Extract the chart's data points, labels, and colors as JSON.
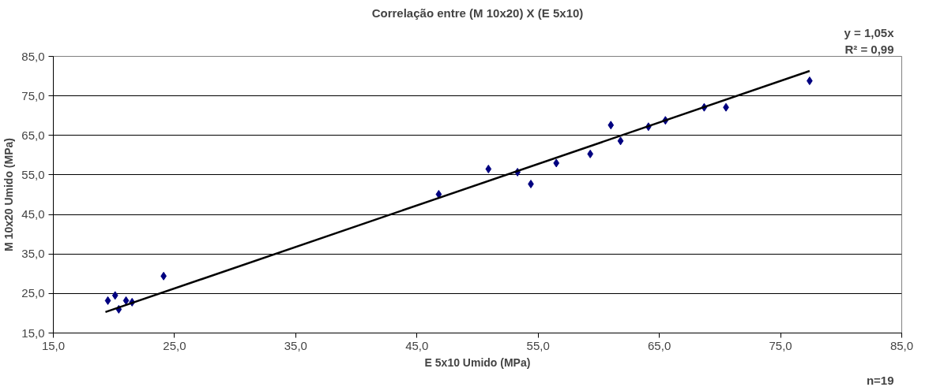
{
  "chart_data": {
    "type": "scatter",
    "title": "Correlação entre (M 10x20) X (E 5x10)",
    "xlabel": "E 5x10 Umido (MPa)",
    "ylabel": "M 10x20 Umido (MPa)",
    "annotations": [
      "y = 1,05x",
      "R² = 0,99",
      "n=19"
    ],
    "series": [
      {
        "color": "#000080",
        "marker": "diamond",
        "x": [
          19.5,
          20.1,
          20.4,
          21.0,
          21.5,
          24.1,
          46.8,
          50.9,
          53.3,
          54.4,
          56.5,
          59.3,
          61.0,
          61.8,
          64.1,
          65.5,
          68.7,
          70.5,
          77.4
        ],
        "values": [
          23.2,
          24.5,
          21.0,
          23.2,
          22.8,
          29.4,
          50.1,
          56.5,
          55.7,
          52.7,
          58.0,
          60.3,
          67.6,
          63.6,
          67.2,
          68.8,
          72.1,
          72.1,
          78.8
        ]
      },
      {
        "type": "line",
        "color": "#000000",
        "x": [
          19.3,
          77.4
        ],
        "values": [
          20.3,
          81.3
        ]
      }
    ],
    "xlim": [
      15,
      85
    ],
    "ylim": [
      15,
      85
    ],
    "xticks": [
      {
        "value": 15,
        "label": "15,0"
      },
      {
        "value": 25,
        "label": "25,0"
      },
      {
        "value": 35,
        "label": "35,0"
      },
      {
        "value": 45,
        "label": "45,0"
      },
      {
        "value": 55,
        "label": "55,0"
      },
      {
        "value": 65,
        "label": "65,0"
      },
      {
        "value": 75,
        "label": "75,0"
      },
      {
        "value": 85,
        "label": "85,0"
      }
    ],
    "yticks": [
      {
        "value": 15,
        "label": "15,0"
      },
      {
        "value": 25,
        "label": "25,0"
      },
      {
        "value": 35,
        "label": "35,0"
      },
      {
        "value": 45,
        "label": "45,0"
      },
      {
        "value": 55,
        "label": "55,0"
      },
      {
        "value": 65,
        "label": "65,0"
      },
      {
        "value": 75,
        "label": "75,0"
      },
      {
        "value": 85,
        "label": "85,0"
      }
    ],
    "grid": "y"
  }
}
